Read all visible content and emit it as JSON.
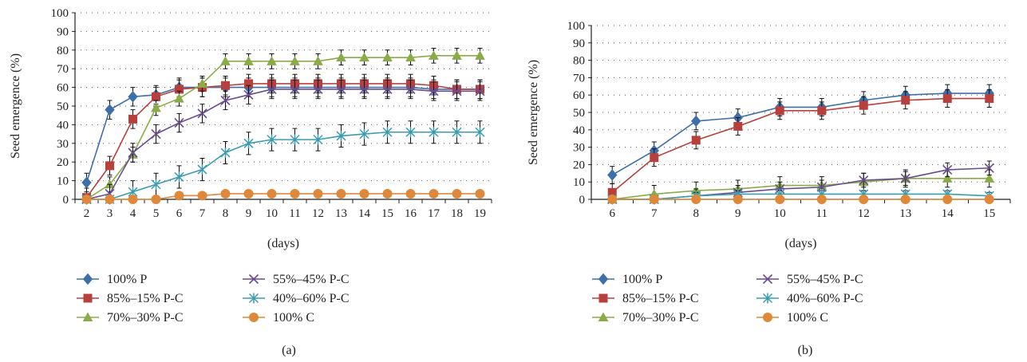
{
  "colors": {
    "100% P": "#3d70a8",
    "85%–15% P-C": "#b8403c",
    "70%–30% P-C": "#8aac48",
    "55%–45% P-C": "#6a4c8e",
    "40%–60% P-C": "#3a9cb0",
    "100% C": "#e0883a"
  },
  "markers": {
    "100% P": "diamond",
    "85%–15% P-C": "square",
    "70%–30% P-C": "triangle",
    "55%–45% P-C": "x",
    "40%–60% P-C": "asterisk",
    "100% C": "circle"
  },
  "chart_data": [
    {
      "type": "line",
      "panel_label": "(a)",
      "xlabel": "(days)",
      "ylabel": "Seed emergence (%)",
      "x": [
        2,
        3,
        4,
        5,
        6,
        7,
        8,
        9,
        10,
        11,
        12,
        13,
        14,
        15,
        16,
        17,
        18,
        19
      ],
      "ylim": [
        0,
        100
      ],
      "yticks": [
        0,
        10,
        20,
        30,
        40,
        50,
        60,
        70,
        80,
        90,
        100
      ],
      "grid": "dotted",
      "legend_position": "bottom",
      "series": [
        {
          "name": "100% P",
          "values": [
            9,
            48,
            55,
            56,
            60,
            60,
            60,
            60,
            60,
            60,
            60,
            60,
            60,
            60,
            60,
            59,
            59,
            59
          ],
          "error": 5
        },
        {
          "name": "85%–15% P-C",
          "values": [
            1,
            18,
            43,
            55,
            59,
            60,
            61,
            62,
            62,
            62,
            62,
            62,
            62,
            62,
            62,
            61,
            59,
            59
          ],
          "error": 5
        },
        {
          "name": "70%–30% P-C",
          "values": [
            0,
            8,
            24,
            49,
            54,
            62,
            74,
            74,
            74,
            74,
            74,
            76,
            76,
            76,
            76,
            77,
            77,
            77
          ],
          "error": 4
        },
        {
          "name": "55%–45% P-C",
          "values": [
            0,
            3,
            25,
            35,
            41,
            46,
            53,
            56,
            59,
            59,
            59,
            59,
            59,
            59,
            59,
            58,
            58,
            58
          ],
          "error": 5
        },
        {
          "name": "40%–60% P-C",
          "values": [
            0,
            0,
            4,
            8,
            12,
            16,
            25,
            30,
            32,
            32,
            32,
            34,
            35,
            36,
            36,
            36,
            36,
            36
          ],
          "error": 6
        },
        {
          "name": "100% C",
          "values": [
            0,
            0,
            0,
            0,
            2,
            2,
            3,
            3,
            3,
            3,
            3,
            3,
            3,
            3,
            3,
            3,
            3,
            3
          ],
          "error": 0
        }
      ]
    },
    {
      "type": "line",
      "panel_label": "(b)",
      "xlabel": "(days)",
      "ylabel": "Seed emergence (%)",
      "x": [
        6,
        7,
        8,
        9,
        10,
        11,
        12,
        13,
        14,
        15
      ],
      "ylim": [
        0,
        100
      ],
      "yticks": [
        0,
        10,
        20,
        30,
        40,
        50,
        60,
        70,
        80,
        90,
        100
      ],
      "grid": "dotted",
      "legend_position": "bottom",
      "series": [
        {
          "name": "100% P",
          "values": [
            14,
            28,
            45,
            47,
            53,
            53,
            57,
            60,
            61,
            61
          ],
          "error": 5
        },
        {
          "name": "85%–15% P-C",
          "values": [
            4,
            24,
            34,
            42,
            51,
            51,
            54,
            57,
            58,
            58
          ],
          "error": 5
        },
        {
          "name": "70%–30% P-C",
          "values": [
            0,
            3,
            5,
            6,
            8,
            8,
            10,
            12,
            12,
            12
          ],
          "error": 5
        },
        {
          "name": "55%–45% P-C",
          "values": [
            0,
            0,
            2,
            4,
            6,
            7,
            11,
            12,
            17,
            18
          ],
          "error": 4
        },
        {
          "name": "40%–60% P-C",
          "values": [
            0,
            0,
            2,
            3,
            3,
            3,
            3,
            3,
            3,
            2
          ],
          "error": 2
        },
        {
          "name": "100% C",
          "values": [
            0,
            0,
            0,
            0,
            0,
            0,
            0,
            0,
            0,
            0
          ],
          "error": 0
        }
      ]
    }
  ]
}
